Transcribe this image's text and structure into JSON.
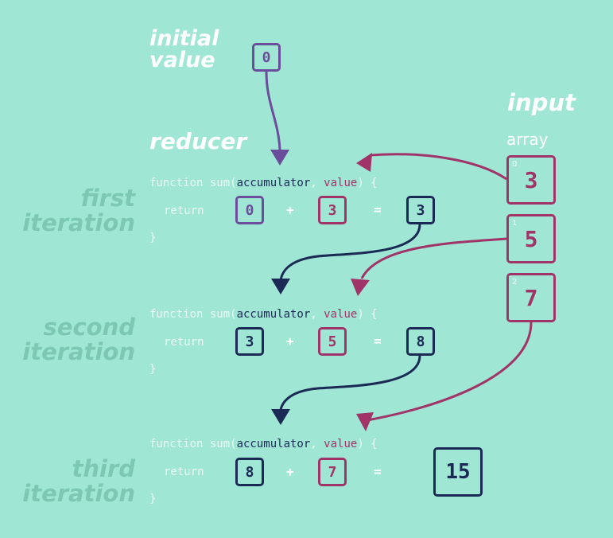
{
  "initial": {
    "line1": "initial",
    "line2": "value",
    "value": "0"
  },
  "reducer": {
    "title": "reducer"
  },
  "input": {
    "title": "input",
    "subtitle": "array",
    "items": [
      {
        "index": "0",
        "value": "3"
      },
      {
        "index": "1",
        "value": "5"
      },
      {
        "index": "2",
        "value": "7"
      }
    ]
  },
  "code": {
    "fn_start": "function sum(",
    "acc": "accumulator",
    "comma": ", ",
    "val": "value",
    "fn_end": ") {",
    "return_kw": "return",
    "close": "}",
    "plus": "+",
    "equals": "="
  },
  "iterations": [
    {
      "label1": "first",
      "label2": "iteration",
      "acc": "0",
      "value": "3",
      "result": "3"
    },
    {
      "label1": "second",
      "label2": "iteration",
      "acc": "3",
      "value": "5",
      "result": "8"
    },
    {
      "label1": "third",
      "label2": "iteration",
      "acc": "8",
      "value": "7",
      "result": "15"
    }
  ],
  "colors": {
    "background": "#a0e6d5",
    "accumulator_initial": "#6b4e9b",
    "accumulator": "#1a2a55",
    "value": "#a03468",
    "label": "#7cc8b2"
  }
}
